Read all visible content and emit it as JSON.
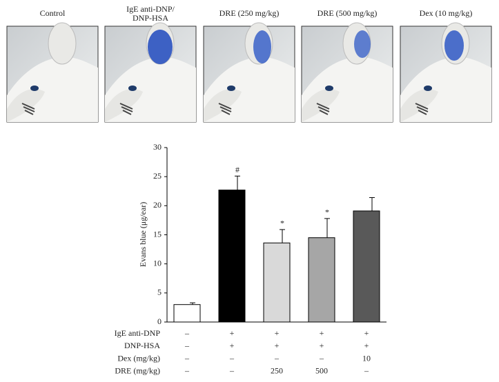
{
  "panels": [
    {
      "title": [
        "Control"
      ]
    },
    {
      "title": [
        "IgE anti-DNP/",
        "DNP-HSA"
      ]
    },
    {
      "title": [
        "DRE (250 mg/kg)"
      ]
    },
    {
      "title": [
        "DRE (500 mg/kg)"
      ]
    },
    {
      "title": [
        "Dex (10 mg/kg)"
      ]
    }
  ],
  "chart_data": {
    "type": "bar",
    "y_label": "Evans blue (μg/ear)",
    "categories": [
      null,
      null,
      null,
      null,
      null
    ],
    "values": [
      3.0,
      22.7,
      13.6,
      14.5,
      19.1
    ],
    "errors": [
      0.3,
      2.4,
      2.3,
      3.3,
      2.3
    ],
    "value_annotations": [
      null,
      "#",
      "*",
      "*",
      null
    ],
    "colors": [
      "#ffffff",
      "#000000",
      "#d9d9d9",
      "#a6a6a6",
      "#595959"
    ],
    "ylim": [
      0,
      30
    ],
    "yticks": [
      0,
      5,
      10,
      15,
      20,
      25,
      30
    ]
  },
  "table": {
    "rows": [
      {
        "label": "IgE anti-DNP",
        "cells": [
          "–",
          "+",
          "+",
          "+",
          "+"
        ]
      },
      {
        "label": "DNP-HSA",
        "cells": [
          "–",
          "+",
          "+",
          "+",
          "+"
        ]
      },
      {
        "label": "Dex (mg/kg)",
        "cells": [
          "–",
          "–",
          "–",
          "–",
          "10"
        ]
      },
      {
        "label": "DRE (mg/kg)",
        "cells": [
          "–",
          "–",
          "250",
          "500",
          "–"
        ]
      }
    ]
  }
}
